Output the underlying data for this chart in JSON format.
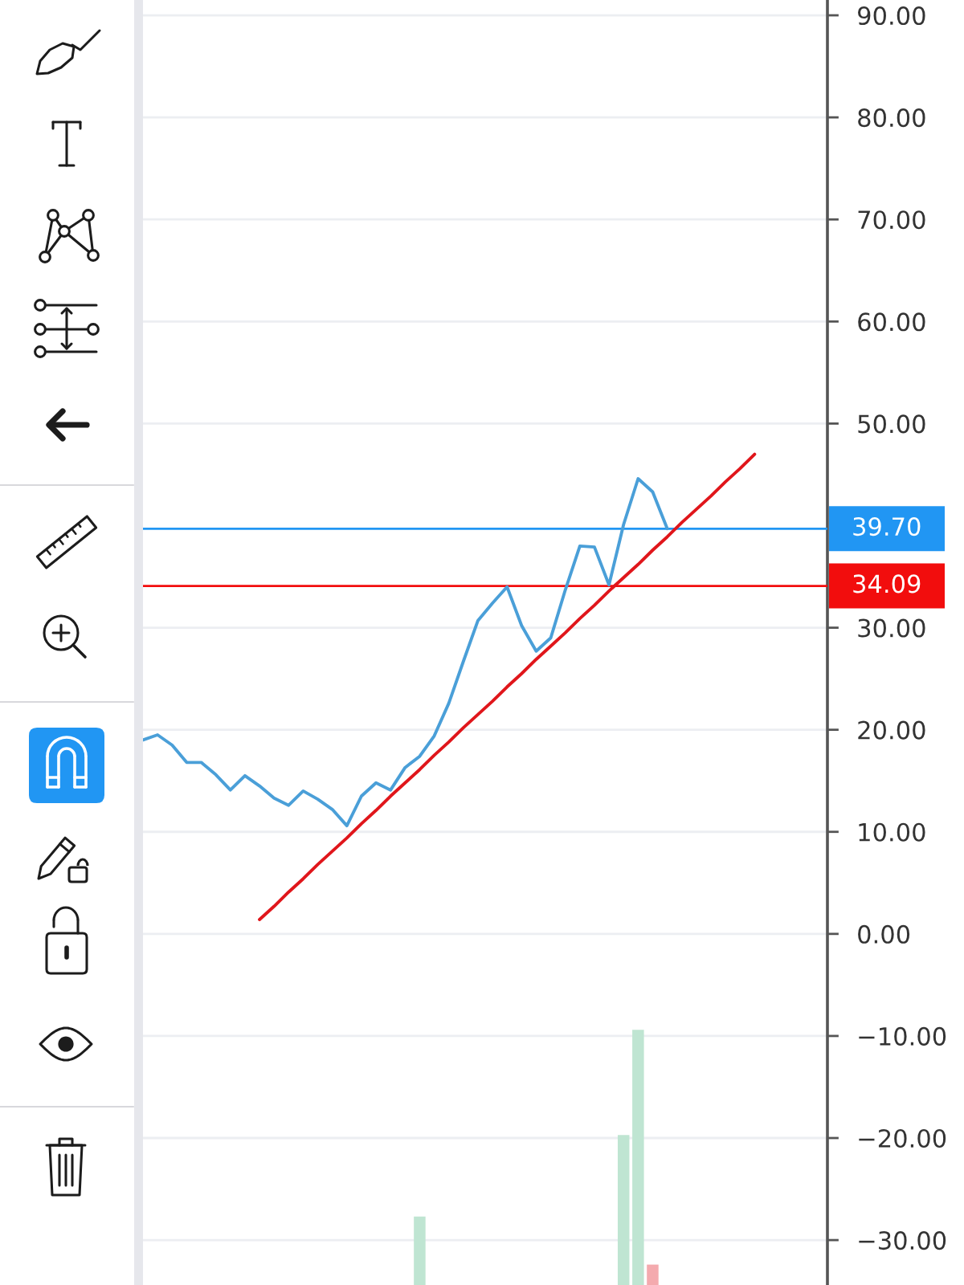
{
  "chart_data": {
    "type": "line",
    "categories": [
      null,
      null,
      null,
      null,
      null,
      null,
      null,
      null,
      null,
      null,
      null,
      null,
      null,
      null,
      null,
      null,
      null,
      null,
      null,
      null,
      null,
      null,
      null,
      null,
      null,
      null,
      null,
      null,
      null,
      null,
      null,
      null,
      null,
      null,
      null,
      null,
      null,
      null,
      null,
      null,
      null,
      null,
      null,
      null,
      null,
      null,
      null
    ],
    "ylim": [
      -34.4,
      91.5
    ],
    "yticks": [
      {
        "value": 90,
        "label": "90.00"
      },
      {
        "value": 80,
        "label": "80.00"
      },
      {
        "value": 70,
        "label": "70.00"
      },
      {
        "value": 60,
        "label": "60.00"
      },
      {
        "value": 50,
        "label": "50.00"
      },
      {
        "value": 30,
        "label": "30.00"
      },
      {
        "value": 20,
        "label": "20.00"
      },
      {
        "value": 10,
        "label": "10.00"
      },
      {
        "value": 0,
        "label": "0.00"
      },
      {
        "value": -10,
        "label": "−10.00"
      },
      {
        "value": -20,
        "label": "−20.00"
      },
      {
        "value": -30,
        "label": "−30.00"
      }
    ],
    "tick_labels": "y",
    "grid": "y",
    "series": [
      {
        "type": "bar",
        "values": [
          null,
          null,
          null,
          null,
          null,
          null,
          null,
          null,
          null,
          null,
          null,
          null,
          null,
          null,
          null,
          null,
          null,
          null,
          null,
          6.7,
          null,
          null,
          null,
          null,
          null,
          null,
          null,
          null,
          null,
          null,
          null,
          null,
          null,
          14.7,
          25.0,
          2.0,
          null,
          null,
          null,
          null,
          null,
          null,
          null,
          null,
          null,
          null,
          null
        ],
        "base": [
          null,
          null,
          null,
          null,
          null,
          null,
          null,
          null,
          null,
          null,
          null,
          null,
          null,
          null,
          null,
          null,
          null,
          null,
          null,
          -34.4,
          null,
          null,
          null,
          null,
          null,
          null,
          null,
          null,
          null,
          null,
          null,
          null,
          null,
          -34.4,
          -34.4,
          -34.4,
          null,
          null,
          null,
          null,
          null,
          null,
          null,
          null,
          null,
          null,
          null
        ],
        "colors": [
          null,
          null,
          null,
          null,
          null,
          null,
          null,
          null,
          null,
          null,
          null,
          null,
          null,
          null,
          null,
          null,
          null,
          null,
          null,
          "#bfe5d2",
          null,
          null,
          null,
          null,
          null,
          null,
          null,
          null,
          null,
          null,
          null,
          null,
          null,
          "#bfe5d2",
          "#bfe5d2",
          "#f4aaae",
          null,
          null,
          null,
          null,
          null,
          null,
          null,
          null,
          null,
          null,
          null
        ]
      },
      {
        "color": "#4a9fd8",
        "values": [
          19.0,
          19.5,
          18.5,
          16.8,
          16.8,
          15.6,
          14.1,
          15.5,
          14.5,
          13.3,
          12.6,
          14.0,
          13.2,
          12.2,
          10.6,
          13.5,
          14.8,
          14.1,
          16.3,
          17.4,
          19.4,
          22.6,
          26.7,
          30.7,
          32.4,
          34.0,
          30.2,
          27.7,
          29.0,
          33.7,
          38.0,
          37.9,
          34.2,
          40.1,
          44.6,
          43.3,
          39.7,
          null,
          null,
          null,
          null,
          null,
          null,
          null,
          null,
          null,
          null
        ]
      },
      {
        "color": "#e0161b",
        "values": [
          null,
          null,
          null,
          null,
          null,
          null,
          null,
          null,
          1.4,
          2.7,
          4.1,
          5.4,
          6.8,
          8.1,
          9.4,
          10.8,
          12.1,
          13.5,
          14.8,
          16.1,
          17.5,
          18.8,
          20.2,
          21.5,
          22.8,
          24.2,
          25.5,
          26.9,
          28.2,
          29.5,
          30.9,
          32.2,
          33.6,
          34.9,
          36.2,
          37.6,
          38.9,
          40.3,
          41.6,
          42.9,
          44.3,
          45.6,
          47.0,
          null,
          null,
          null,
          null
        ]
      }
    ],
    "ref_lines": [
      {
        "axis": "y",
        "value": 39.7,
        "label": "39.70",
        "color": "#2196f3"
      },
      {
        "axis": "y",
        "value": 34.09,
        "label": "34.09",
        "color": "#f20d0d"
      }
    ]
  }
}
